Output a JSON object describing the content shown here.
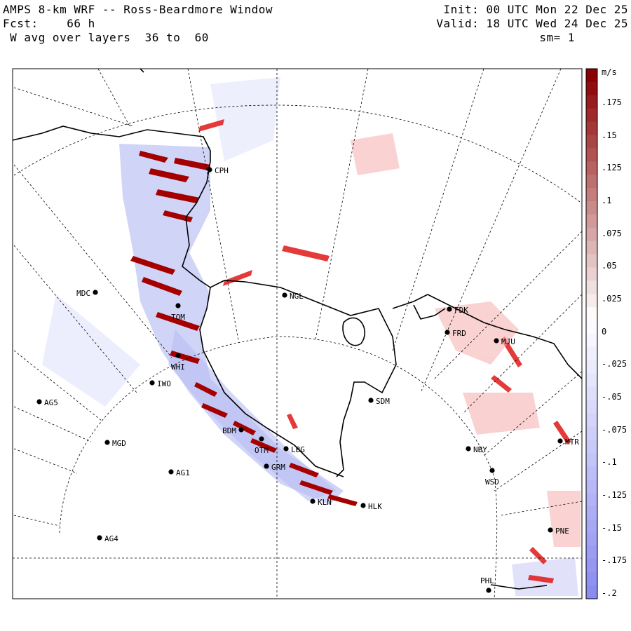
{
  "header": {
    "title": "AMPS 8-km WRF -- Ross-Beardmore Window",
    "forecast": "Fcst:    66 h",
    "layer": " W avg over layers  36 to  60",
    "init": "Init: 00 UTC Mon 22 Dec 25",
    "valid": "Valid: 18 UTC Wed 24 Dec 25",
    "smoothing": "sm= 1"
  },
  "colorbar": {
    "unit": "m/s",
    "labels": [
      ".175",
      ".15",
      ".125",
      ".1",
      ".075",
      ".05",
      ".025",
      "0",
      "-.025",
      "-.05",
      "-.075",
      "-.1",
      "-.125",
      "-.15",
      "-.175",
      "-.2"
    ],
    "positive_color": "#8b0000",
    "negative_color": "#8a8cf0"
  },
  "stations": [
    {
      "id": "CPH"
    },
    {
      "id": "MDC"
    },
    {
      "id": "NGL"
    },
    {
      "id": "TOM"
    },
    {
      "id": "WHI"
    },
    {
      "id": "IWO"
    },
    {
      "id": "AG5"
    },
    {
      "id": "MGD"
    },
    {
      "id": "BDM"
    },
    {
      "id": "OTM"
    },
    {
      "id": "GRM"
    },
    {
      "id": "LBG"
    },
    {
      "id": "AG1"
    },
    {
      "id": "AG4"
    },
    {
      "id": "KLN"
    },
    {
      "id": "HLK"
    },
    {
      "id": "SDM"
    },
    {
      "id": "FDK"
    },
    {
      "id": "FRD"
    },
    {
      "id": "MJU"
    },
    {
      "id": "NBY"
    },
    {
      "id": "WSD"
    },
    {
      "id": "MTR"
    },
    {
      "id": "PNE"
    },
    {
      "id": "PHL"
    }
  ]
}
